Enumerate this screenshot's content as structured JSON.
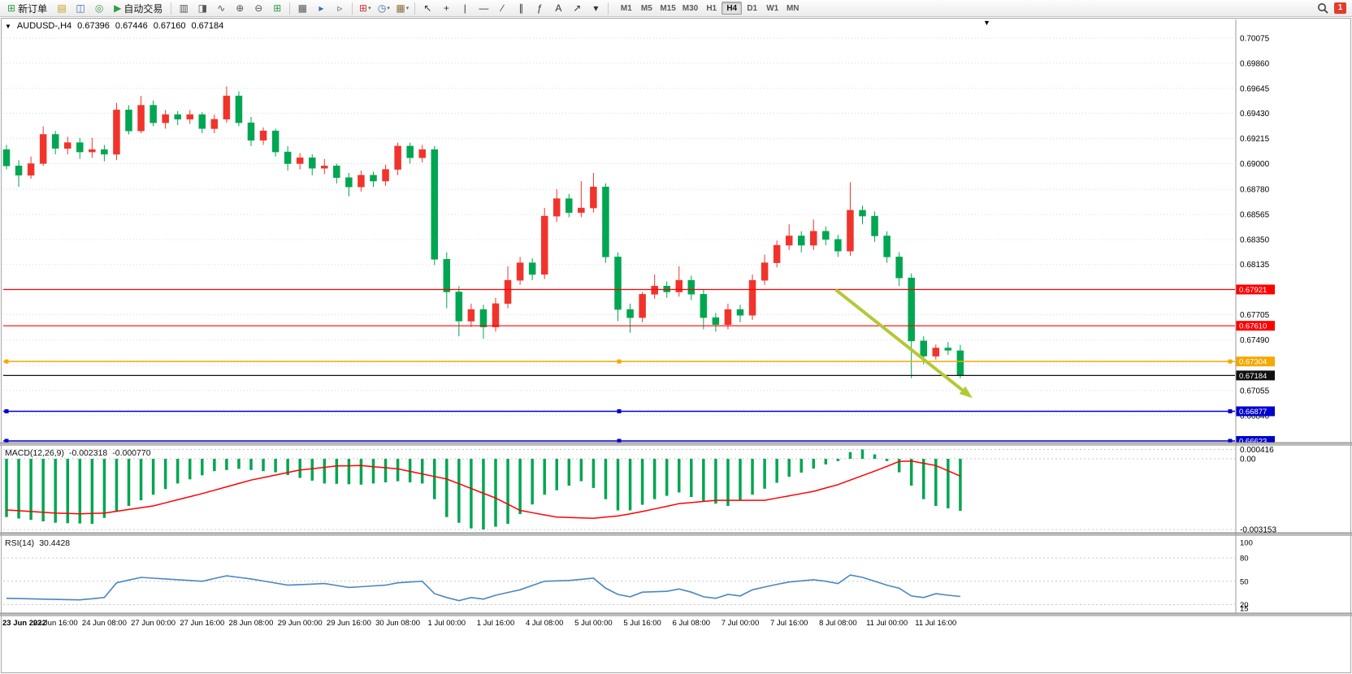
{
  "icons": {
    "caret": "▾",
    "title_collapse": "▼",
    "chart_menu": "▼"
  },
  "toolbar": {
    "new_order_label": "新订单",
    "new_order_icon": {
      "glyph": "⊞",
      "color": "#2f9e44"
    },
    "auto_trading_label": "自动交易",
    "auto_trading_icon": {
      "glyph": "▶",
      "color": "#2f9e44"
    },
    "icon_groups": {
      "panels": [
        {
          "name": "market-watch-icon",
          "glyph": "▤",
          "color": "#c59b22"
        },
        {
          "name": "data-window-icon",
          "glyph": "◫",
          "color": "#3a6ea5"
        },
        {
          "name": "navigator-icon",
          "glyph": "◎",
          "color": "#2f9e44"
        }
      ],
      "chart_types": [
        {
          "name": "bar-chart-icon",
          "glyph": "▥",
          "color": "#555555"
        },
        {
          "name": "candlestick-chart-icon",
          "glyph": "◨",
          "color": "#555555"
        },
        {
          "name": "line-chart-icon",
          "glyph": "∿",
          "color": "#555555"
        },
        {
          "name": "zoom-in-icon",
          "glyph": "⊕",
          "color": "#555555"
        },
        {
          "name": "zoom-out-icon",
          "glyph": "⊖",
          "color": "#555555"
        },
        {
          "name": "grid-icon",
          "glyph": "⊞",
          "color": "#2f9e44"
        }
      ],
      "windows": [
        {
          "name": "tile-windows-icon",
          "glyph": "▦",
          "color": "#555555"
        },
        {
          "name": "auto-scroll-icon",
          "glyph": "▸",
          "color": "#3a6ea5"
        },
        {
          "name": "chart-shift-icon",
          "glyph": "▹",
          "color": "#555555"
        }
      ],
      "dropdowns": [
        {
          "name": "indicators-icon",
          "glyph": "⊞",
          "color": "#cc3333",
          "dropdown": true
        },
        {
          "name": "periods-icon",
          "glyph": "◷",
          "color": "#3a6ea5",
          "dropdown": true
        },
        {
          "name": "templates-icon",
          "glyph": "▦",
          "color": "#8a6d3b",
          "dropdown": true
        }
      ],
      "line_studies": [
        {
          "name": "cursor-icon",
          "glyph": "↖",
          "color": "#333333"
        },
        {
          "name": "crosshair-icon",
          "glyph": "+",
          "color": "#333333"
        },
        {
          "name": "vertical-line-icon",
          "glyph": "|",
          "color": "#333333"
        },
        {
          "name": "horizontal-line-icon",
          "glyph": "—",
          "color": "#333333"
        },
        {
          "name": "trendline-icon",
          "glyph": "∕",
          "color": "#333333"
        },
        {
          "name": "channel-icon",
          "glyph": "∥",
          "color": "#333333"
        },
        {
          "name": "fibonacci-icon",
          "glyph": "ƒ",
          "color": "#333333"
        },
        {
          "name": "text-icon",
          "glyph": "A",
          "color": "#333333"
        },
        {
          "name": "arrows-icon",
          "glyph": "↗",
          "color": "#333333"
        },
        {
          "name": "shapes-icon",
          "glyph": "▾",
          "color": "#333333"
        }
      ]
    },
    "timeframes": [
      "M1",
      "M5",
      "M15",
      "M30",
      "H1",
      "H4",
      "D1",
      "W1",
      "MN"
    ],
    "active_timeframe": "H4",
    "badge_count": "1"
  },
  "chart_header": {
    "symbol_period": "AUDUSD-,H4",
    "open": "0.67396",
    "high": "0.67446",
    "low": "0.67160",
    "close": "0.67184"
  },
  "chart_data": {
    "type": "candlestick",
    "symbol": "AUDUSD-",
    "timeframe": "H4",
    "colors": {
      "bull": "#f0342c",
      "bear": "#00a651",
      "grid": "#d9d9d9",
      "macd_histogram": "#00a651",
      "macd_signal": "#ff0000",
      "rsi_line": "#4a86c2",
      "arrow": "#b4c836"
    },
    "price_axis_ticks": [
      "0.70075",
      "0.69860",
      "0.69645",
      "0.69430",
      "0.69215",
      "0.69000",
      "0.68780",
      "0.68565",
      "0.68350",
      "0.68135",
      "0.67920",
      "0.67705",
      "0.67490",
      "0.67270",
      "0.67055",
      "0.66840",
      "0.66625"
    ],
    "time_labels": [
      "23 Jun 2022",
      "23 Jun 16:00",
      "24 Jun 08:00",
      "27 Jun 00:00",
      "27 Jun 16:00",
      "28 Jun 08:00",
      "29 Jun 00:00",
      "29 Jun 16:00",
      "30 Jun 08:00",
      "1 Jul 00:00",
      "1 Jul 16:00",
      "4 Jul 08:00",
      "5 Jul 00:00",
      "5 Jul 16:00",
      "6 Jul 08:00",
      "7 Jul 00:00",
      "7 Jul 16:00",
      "8 Jul 08:00",
      "11 Jul 00:00",
      "11 Jul 16:00"
    ],
    "label_every_n_bars": 4,
    "candles": [
      [
        0.6912,
        0.6916,
        0.6895,
        0.6898
      ],
      [
        0.6898,
        0.6903,
        0.688,
        0.689
      ],
      [
        0.689,
        0.6906,
        0.6887,
        0.69
      ],
      [
        0.69,
        0.6932,
        0.6898,
        0.6925
      ],
      [
        0.6925,
        0.6928,
        0.6908,
        0.6913
      ],
      [
        0.6913,
        0.6923,
        0.6908,
        0.6918
      ],
      [
        0.6918,
        0.6922,
        0.6904,
        0.691
      ],
      [
        0.691,
        0.6922,
        0.6905,
        0.6912
      ],
      [
        0.6912,
        0.6916,
        0.6902,
        0.6908
      ],
      [
        0.6908,
        0.6952,
        0.6903,
        0.6946
      ],
      [
        0.6946,
        0.695,
        0.6925,
        0.6928
      ],
      [
        0.6928,
        0.6958,
        0.6926,
        0.695
      ],
      [
        0.695,
        0.6954,
        0.6932,
        0.6935
      ],
      [
        0.6935,
        0.6946,
        0.693,
        0.6942
      ],
      [
        0.6942,
        0.6945,
        0.6933,
        0.6938
      ],
      [
        0.6938,
        0.6946,
        0.6934,
        0.6942
      ],
      [
        0.6942,
        0.6944,
        0.6926,
        0.693
      ],
      [
        0.693,
        0.6942,
        0.6926,
        0.6938
      ],
      [
        0.6938,
        0.6966,
        0.6935,
        0.6958
      ],
      [
        0.6958,
        0.6962,
        0.6932,
        0.6935
      ],
      [
        0.6935,
        0.694,
        0.6915,
        0.692
      ],
      [
        0.692,
        0.6931,
        0.6916,
        0.6928
      ],
      [
        0.6928,
        0.693,
        0.6906,
        0.691
      ],
      [
        0.691,
        0.6915,
        0.6894,
        0.69
      ],
      [
        0.69,
        0.6909,
        0.6895,
        0.6905
      ],
      [
        0.6905,
        0.6908,
        0.689,
        0.6896
      ],
      [
        0.6896,
        0.6904,
        0.6891,
        0.6898
      ],
      [
        0.6898,
        0.69,
        0.6883,
        0.6888
      ],
      [
        0.6888,
        0.6892,
        0.6872,
        0.688
      ],
      [
        0.688,
        0.6894,
        0.6876,
        0.689
      ],
      [
        0.689,
        0.6893,
        0.688,
        0.6885
      ],
      [
        0.6885,
        0.6899,
        0.6881,
        0.6895
      ],
      [
        0.6895,
        0.6918,
        0.689,
        0.6915
      ],
      [
        0.6915,
        0.6918,
        0.69,
        0.6905
      ],
      [
        0.6905,
        0.6916,
        0.6901,
        0.6912
      ],
      [
        0.6912,
        0.6915,
        0.6813,
        0.6818
      ],
      [
        0.6818,
        0.6824,
        0.6776,
        0.679
      ],
      [
        0.679,
        0.6795,
        0.6752,
        0.6765
      ],
      [
        0.6765,
        0.678,
        0.676,
        0.6775
      ],
      [
        0.6775,
        0.6779,
        0.675,
        0.676
      ],
      [
        0.676,
        0.6785,
        0.6756,
        0.678
      ],
      [
        0.678,
        0.6812,
        0.6776,
        0.68
      ],
      [
        0.68,
        0.682,
        0.6796,
        0.6815
      ],
      [
        0.6815,
        0.6819,
        0.68,
        0.6805
      ],
      [
        0.6805,
        0.6862,
        0.6801,
        0.6855
      ],
      [
        0.6855,
        0.6878,
        0.685,
        0.687
      ],
      [
        0.687,
        0.6874,
        0.6854,
        0.6858
      ],
      [
        0.6858,
        0.6885,
        0.6854,
        0.6862
      ],
      [
        0.6862,
        0.6892,
        0.6858,
        0.688
      ],
      [
        0.688,
        0.6883,
        0.6815,
        0.682
      ],
      [
        0.682,
        0.6824,
        0.6765,
        0.6775
      ],
      [
        0.6775,
        0.678,
        0.6755,
        0.6768
      ],
      [
        0.6768,
        0.679,
        0.6764,
        0.6788
      ],
      [
        0.6788,
        0.6805,
        0.6784,
        0.6795
      ],
      [
        0.6795,
        0.6799,
        0.6785,
        0.679
      ],
      [
        0.679,
        0.6812,
        0.6786,
        0.68
      ],
      [
        0.68,
        0.6804,
        0.6783,
        0.6788
      ],
      [
        0.6788,
        0.6792,
        0.6758,
        0.6768
      ],
      [
        0.6768,
        0.6772,
        0.6756,
        0.6762
      ],
      [
        0.6762,
        0.678,
        0.6758,
        0.6775
      ],
      [
        0.6775,
        0.6779,
        0.6764,
        0.677
      ],
      [
        0.677,
        0.6805,
        0.6766,
        0.68
      ],
      [
        0.68,
        0.6822,
        0.6796,
        0.6815
      ],
      [
        0.6815,
        0.6834,
        0.6811,
        0.683
      ],
      [
        0.683,
        0.6848,
        0.6826,
        0.6838
      ],
      [
        0.6838,
        0.6842,
        0.6824,
        0.683
      ],
      [
        0.683,
        0.6852,
        0.6826,
        0.6842
      ],
      [
        0.6842,
        0.6846,
        0.683,
        0.6835
      ],
      [
        0.6835,
        0.6839,
        0.682,
        0.6825
      ],
      [
        0.6825,
        0.6884,
        0.6821,
        0.686
      ],
      [
        0.686,
        0.6864,
        0.6848,
        0.6855
      ],
      [
        0.6855,
        0.6859,
        0.6833,
        0.6838
      ],
      [
        0.6838,
        0.6842,
        0.6815,
        0.682
      ],
      [
        0.682,
        0.6824,
        0.6795,
        0.6802
      ],
      [
        0.6802,
        0.6806,
        0.6716,
        0.6748
      ],
      [
        0.6748,
        0.6752,
        0.6728,
        0.6735
      ],
      [
        0.6735,
        0.6745,
        0.6732,
        0.6742
      ],
      [
        0.6742,
        0.6747,
        0.6736,
        0.674
      ],
      [
        0.67396,
        0.67446,
        0.6716,
        0.67184
      ]
    ],
    "levels": [
      {
        "price": 0.67921,
        "color": "#ff0000",
        "label": "0.67921",
        "width": 1.2,
        "handles": false
      },
      {
        "price": 0.6761,
        "color": "#ff0000",
        "label": "0.67610",
        "width": 1.2,
        "handles": false
      },
      {
        "price": 0.67304,
        "color": "#f5a800",
        "label": "0.67304",
        "width": 1.5,
        "handles": true
      },
      {
        "price": 0.67184,
        "color": "#101010",
        "label": "0.67184",
        "width": 1.2,
        "handles": false
      },
      {
        "price": 0.66877,
        "color": "#0000cc",
        "label": "0.66877",
        "width": 1.5,
        "handles": true
      },
      {
        "price": 0.66623,
        "color": "#0000cc",
        "label": "0.66623",
        "width": 1.5,
        "handles": true
      }
    ],
    "trend_arrow": {
      "from": {
        "bar": 67.8,
        "price": 0.6792
      },
      "to": {
        "bar": 79.0,
        "price": 0.6699
      }
    },
    "macd": {
      "title": "MACD(12,26,9)",
      "value_main": "-0.002318",
      "value_signal": "-0.000770",
      "axis_ticks": [
        "0.000416",
        "0.00",
        "-0.003153"
      ],
      "histogram_keypoints": [
        [
          0,
          -0.0026
        ],
        [
          4,
          -0.00285
        ],
        [
          7,
          -0.0029
        ],
        [
          10,
          -0.0021
        ],
        [
          14,
          -0.0011
        ],
        [
          17,
          -0.00055
        ],
        [
          19,
          -0.00045
        ],
        [
          22,
          -0.0006
        ],
        [
          26,
          -0.0011
        ],
        [
          29,
          -0.00115
        ],
        [
          32,
          -0.001
        ],
        [
          34,
          -0.0011
        ],
        [
          35,
          -0.0018
        ],
        [
          36,
          -0.0026
        ],
        [
          38,
          -0.0031
        ],
        [
          39,
          -0.00315
        ],
        [
          41,
          -0.0029
        ],
        [
          44,
          -0.0016
        ],
        [
          47,
          -0.001
        ],
        [
          48,
          -0.0013
        ],
        [
          50,
          -0.0023
        ],
        [
          51,
          -0.0023
        ],
        [
          53,
          -0.0018
        ],
        [
          55,
          -0.0015
        ],
        [
          57,
          -0.0019
        ],
        [
          59,
          -0.0021
        ],
        [
          61,
          -0.0016
        ],
        [
          64,
          -0.0008
        ],
        [
          67,
          -0.00025
        ],
        [
          68,
          -0.0001
        ],
        [
          69,
          0.0003
        ],
        [
          70,
          0.000416
        ],
        [
          71,
          0.0002
        ],
        [
          72,
          -0.0001
        ],
        [
          73,
          -0.0006
        ],
        [
          74,
          -0.0012
        ],
        [
          75,
          -0.0018
        ],
        [
          76,
          -0.0021
        ],
        [
          78,
          -0.002318
        ]
      ],
      "signal_keypoints": [
        [
          0,
          -0.00228
        ],
        [
          4,
          -0.00242
        ],
        [
          6,
          -0.00245
        ],
        [
          8,
          -0.00242
        ],
        [
          12,
          -0.0021
        ],
        [
          16,
          -0.00155
        ],
        [
          20,
          -0.00095
        ],
        [
          24,
          -0.0005
        ],
        [
          27,
          -0.00032
        ],
        [
          29,
          -0.0003
        ],
        [
          32,
          -0.00045
        ],
        [
          36,
          -0.0009
        ],
        [
          40,
          -0.00175
        ],
        [
          42,
          -0.0023
        ],
        [
          45,
          -0.0026
        ],
        [
          48,
          -0.00265
        ],
        [
          50,
          -0.00255
        ],
        [
          52,
          -0.00235
        ],
        [
          55,
          -0.002
        ],
        [
          58,
          -0.00185
        ],
        [
          62,
          -0.00185
        ],
        [
          66,
          -0.00145
        ],
        [
          68,
          -0.00115
        ],
        [
          71,
          -0.00055
        ],
        [
          73,
          -0.00012
        ],
        [
          74,
          -0.0001
        ],
        [
          76,
          -0.0003
        ],
        [
          78,
          -0.00077
        ]
      ]
    },
    "rsi": {
      "title": "RSI(14)",
      "value_text": "30.4428",
      "axis_ticks": [
        "100",
        "80",
        "50",
        "20",
        "15"
      ],
      "levels": [
        80,
        50,
        20
      ],
      "keypoints": [
        [
          0,
          28
        ],
        [
          3,
          27
        ],
        [
          6,
          26
        ],
        [
          8,
          29
        ],
        [
          9,
          48
        ],
        [
          11,
          55
        ],
        [
          14,
          52
        ],
        [
          16,
          50
        ],
        [
          18,
          57
        ],
        [
          20,
          53
        ],
        [
          23,
          45
        ],
        [
          26,
          47
        ],
        [
          28,
          42
        ],
        [
          31,
          45
        ],
        [
          32,
          48
        ],
        [
          34,
          50
        ],
        [
          35,
          34
        ],
        [
          36,
          29
        ],
        [
          37,
          25
        ],
        [
          38,
          29
        ],
        [
          39,
          27
        ],
        [
          40,
          32
        ],
        [
          42,
          39
        ],
        [
          44,
          50
        ],
        [
          46,
          51
        ],
        [
          48,
          54
        ],
        [
          49,
          41
        ],
        [
          50,
          33
        ],
        [
          51,
          30
        ],
        [
          52,
          36
        ],
        [
          54,
          37
        ],
        [
          55,
          40
        ],
        [
          56,
          36
        ],
        [
          57,
          30
        ],
        [
          58,
          28
        ],
        [
          59,
          33
        ],
        [
          60,
          31
        ],
        [
          61,
          39
        ],
        [
          63,
          46
        ],
        [
          64,
          49
        ],
        [
          66,
          52
        ],
        [
          67,
          50
        ],
        [
          68,
          47
        ],
        [
          69,
          58
        ],
        [
          70,
          55
        ],
        [
          71,
          50
        ],
        [
          72,
          45
        ],
        [
          73,
          41
        ],
        [
          74,
          31
        ],
        [
          75,
          29
        ],
        [
          76,
          34
        ],
        [
          77,
          32
        ],
        [
          78,
          30.44
        ]
      ]
    }
  }
}
